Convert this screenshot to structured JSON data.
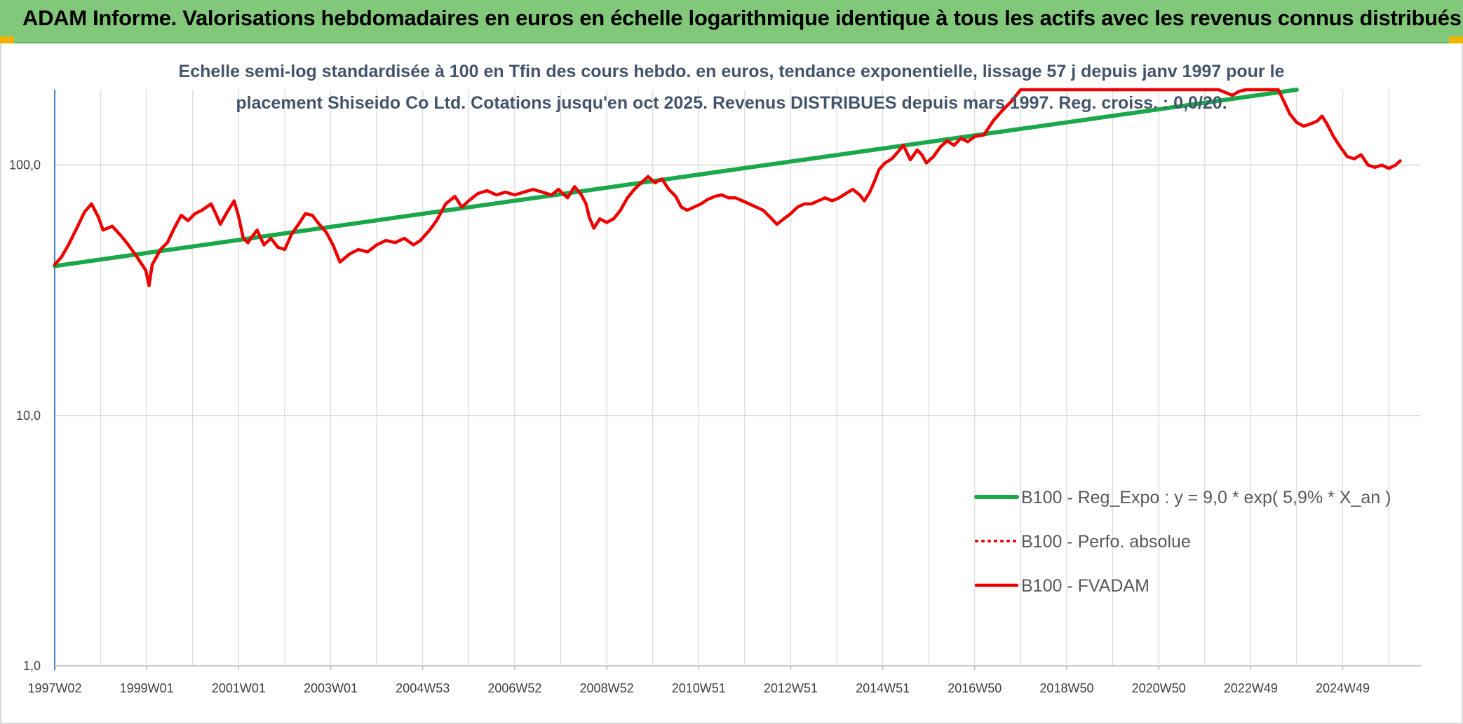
{
  "header": {
    "title": "ADAM Informe. Valorisations hebdomadaires en euros en échelle logarithmique identique à tous les actifs avec les revenus connus distribués"
  },
  "colors": {
    "banner": "#82c87a",
    "trend": "#1aa84b",
    "fvadam": "#ee0000",
    "perfo": "#ee0000",
    "axis": "#4a7ebb",
    "grid": "#d9d9d9",
    "subtitle": "#44546a"
  },
  "chart_data": {
    "type": "line",
    "subtitle_lines": [
      "Echelle semi-log standardisée à 100 en Tfin des cours hebdo. en euros, tendance exponentielle, lissage 57 j depuis janv 1997 pour le",
      "placement Shiseido Co Ltd. Cotations jusqu'en oct 2025. Revenus DISTRIBUES depuis mars 1997. Reg. croiss. : 0,0/20."
    ],
    "y_scale": "log",
    "ylim": [
      1,
      200
    ],
    "y_ticks": [
      {
        "value": 1,
        "label": "1,0"
      },
      {
        "value": 10,
        "label": "10,0"
      },
      {
        "value": 100,
        "label": "100,0"
      }
    ],
    "xlim": [
      1997.0,
      2026.7
    ],
    "x_ticks": [
      {
        "value": 1997.0,
        "label": "1997W02"
      },
      {
        "value": 1999.0,
        "label": "1999W01"
      },
      {
        "value": 2001.0,
        "label": "2001W01"
      },
      {
        "value": 2003.0,
        "label": "2003W01"
      },
      {
        "value": 2005.0,
        "label": "2004W53"
      },
      {
        "value": 2007.0,
        "label": "2006W52"
      },
      {
        "value": 2009.0,
        "label": "2008W52"
      },
      {
        "value": 2011.0,
        "label": "2010W51"
      },
      {
        "value": 2013.0,
        "label": "2012W51"
      },
      {
        "value": 2015.0,
        "label": "2014W51"
      },
      {
        "value": 2017.0,
        "label": "2016W50"
      },
      {
        "value": 2019.0,
        "label": "2018W50"
      },
      {
        "value": 2021.0,
        "label": "2020W50"
      },
      {
        "value": 2023.0,
        "label": "2022W49"
      },
      {
        "value": 2025.0,
        "label": "2024W49"
      }
    ],
    "grid": true,
    "legend_position": "bottom-right",
    "legend": [
      {
        "key": "trend",
        "label": "B100 - Reg_Expo : y = 9,0 * exp( 5,9% *  X_an )",
        "style": "solid"
      },
      {
        "key": "perfo",
        "label": "B100 - Perfo. absolue",
        "style": "dotted"
      },
      {
        "key": "fvadam",
        "label": "B100 - FVADAM",
        "style": "solid"
      }
    ],
    "series": [
      {
        "key": "trend",
        "points": [
          [
            1997.0,
            39.5
          ],
          [
            2024.0,
            200
          ]
        ]
      },
      {
        "key": "fvadam",
        "points": [
          [
            1997.0,
            40
          ],
          [
            1997.15,
            43
          ],
          [
            1997.3,
            48
          ],
          [
            1997.5,
            57
          ],
          [
            1997.65,
            65
          ],
          [
            1997.8,
            70
          ],
          [
            1997.95,
            62
          ],
          [
            1998.05,
            55
          ],
          [
            1998.25,
            57
          ],
          [
            1998.45,
            52
          ],
          [
            1998.6,
            48
          ],
          [
            1998.75,
            44
          ],
          [
            1998.9,
            40
          ],
          [
            1998.98,
            38
          ],
          [
            1999.05,
            33
          ],
          [
            1999.12,
            40
          ],
          [
            1999.3,
            46
          ],
          [
            1999.45,
            49
          ],
          [
            1999.6,
            56
          ],
          [
            1999.75,
            63
          ],
          [
            1999.9,
            60
          ],
          [
            2000.05,
            64
          ],
          [
            2000.2,
            66
          ],
          [
            2000.4,
            70
          ],
          [
            2000.5,
            64
          ],
          [
            2000.6,
            58
          ],
          [
            2000.75,
            65
          ],
          [
            2000.9,
            72
          ],
          [
            2001.0,
            62
          ],
          [
            2001.1,
            51
          ],
          [
            2001.2,
            49
          ],
          [
            2001.3,
            52
          ],
          [
            2001.4,
            55
          ],
          [
            2001.55,
            48
          ],
          [
            2001.7,
            51
          ],
          [
            2001.85,
            47
          ],
          [
            2002.0,
            46
          ],
          [
            2002.15,
            53
          ],
          [
            2002.3,
            58
          ],
          [
            2002.45,
            64
          ],
          [
            2002.6,
            63
          ],
          [
            2002.75,
            58
          ],
          [
            2002.9,
            54
          ],
          [
            2003.05,
            48
          ],
          [
            2003.2,
            41
          ],
          [
            2003.4,
            44
          ],
          [
            2003.6,
            46
          ],
          [
            2003.8,
            45
          ],
          [
            2004.0,
            48
          ],
          [
            2004.2,
            50
          ],
          [
            2004.4,
            49
          ],
          [
            2004.6,
            51
          ],
          [
            2004.8,
            48
          ],
          [
            2004.95,
            50
          ],
          [
            2005.15,
            55
          ],
          [
            2005.3,
            60
          ],
          [
            2005.5,
            70
          ],
          [
            2005.7,
            75
          ],
          [
            2005.85,
            68
          ],
          [
            2006.0,
            72
          ],
          [
            2006.2,
            77
          ],
          [
            2006.4,
            79
          ],
          [
            2006.6,
            76
          ],
          [
            2006.8,
            78
          ],
          [
            2007.0,
            76
          ],
          [
            2007.2,
            78
          ],
          [
            2007.4,
            80
          ],
          [
            2007.6,
            78
          ],
          [
            2007.8,
            76
          ],
          [
            2007.95,
            80
          ],
          [
            2008.15,
            74
          ],
          [
            2008.3,
            82
          ],
          [
            2008.45,
            76
          ],
          [
            2008.55,
            70
          ],
          [
            2008.62,
            62
          ],
          [
            2008.72,
            56
          ],
          [
            2008.85,
            61
          ],
          [
            2009.0,
            59
          ],
          [
            2009.15,
            61
          ],
          [
            2009.3,
            66
          ],
          [
            2009.45,
            74
          ],
          [
            2009.6,
            80
          ],
          [
            2009.75,
            85
          ],
          [
            2009.9,
            90
          ],
          [
            2010.05,
            85
          ],
          [
            2010.2,
            88
          ],
          [
            2010.35,
            80
          ],
          [
            2010.5,
            75
          ],
          [
            2010.62,
            68
          ],
          [
            2010.75,
            66
          ],
          [
            2010.9,
            68
          ],
          [
            2011.05,
            70
          ],
          [
            2011.2,
            73
          ],
          [
            2011.35,
            75
          ],
          [
            2011.5,
            76
          ],
          [
            2011.65,
            74
          ],
          [
            2011.8,
            74
          ],
          [
            2011.95,
            72
          ],
          [
            2012.1,
            70
          ],
          [
            2012.25,
            68
          ],
          [
            2012.4,
            66
          ],
          [
            2012.55,
            62
          ],
          [
            2012.7,
            58
          ],
          [
            2012.85,
            61
          ],
          [
            2013.0,
            64
          ],
          [
            2013.15,
            68
          ],
          [
            2013.3,
            70
          ],
          [
            2013.45,
            70
          ],
          [
            2013.6,
            72
          ],
          [
            2013.75,
            74
          ],
          [
            2013.9,
            72
          ],
          [
            2014.05,
            74
          ],
          [
            2014.2,
            77
          ],
          [
            2014.35,
            80
          ],
          [
            2014.5,
            76
          ],
          [
            2014.6,
            72
          ],
          [
            2014.72,
            78
          ],
          [
            2014.82,
            86
          ],
          [
            2014.92,
            96
          ],
          [
            2015.05,
            102
          ],
          [
            2015.2,
            106
          ],
          [
            2015.35,
            114
          ],
          [
            2015.45,
            120
          ],
          [
            2015.6,
            105
          ],
          [
            2015.75,
            115
          ],
          [
            2015.85,
            110
          ],
          [
            2015.95,
            102
          ],
          [
            2016.1,
            108
          ],
          [
            2016.25,
            118
          ],
          [
            2016.4,
            125
          ],
          [
            2016.55,
            120
          ],
          [
            2016.7,
            128
          ],
          [
            2016.85,
            124
          ],
          [
            2017.0,
            130
          ],
          [
            2017.2,
            132
          ],
          [
            2017.4,
            150
          ],
          [
            2017.6,
            165
          ],
          [
            2017.8,
            180
          ],
          [
            2018.0,
            200
          ],
          [
            2022.3,
            200
          ],
          [
            2022.45,
            195
          ],
          [
            2022.6,
            190
          ],
          [
            2022.75,
            197
          ],
          [
            2022.9,
            200
          ],
          [
            2023.6,
            200
          ],
          [
            2023.72,
            180
          ],
          [
            2023.85,
            160
          ],
          [
            2024.0,
            148
          ],
          [
            2024.15,
            143
          ],
          [
            2024.3,
            146
          ],
          [
            2024.45,
            150
          ],
          [
            2024.55,
            157
          ],
          [
            2024.65,
            147
          ],
          [
            2024.8,
            130
          ],
          [
            2024.95,
            118
          ],
          [
            2025.1,
            108
          ],
          [
            2025.25,
            106
          ],
          [
            2025.4,
            110
          ],
          [
            2025.55,
            100
          ],
          [
            2025.7,
            98
          ],
          [
            2025.85,
            100
          ],
          [
            2026.0,
            97
          ],
          [
            2026.15,
            100
          ],
          [
            2026.25,
            104
          ]
        ]
      }
    ]
  }
}
